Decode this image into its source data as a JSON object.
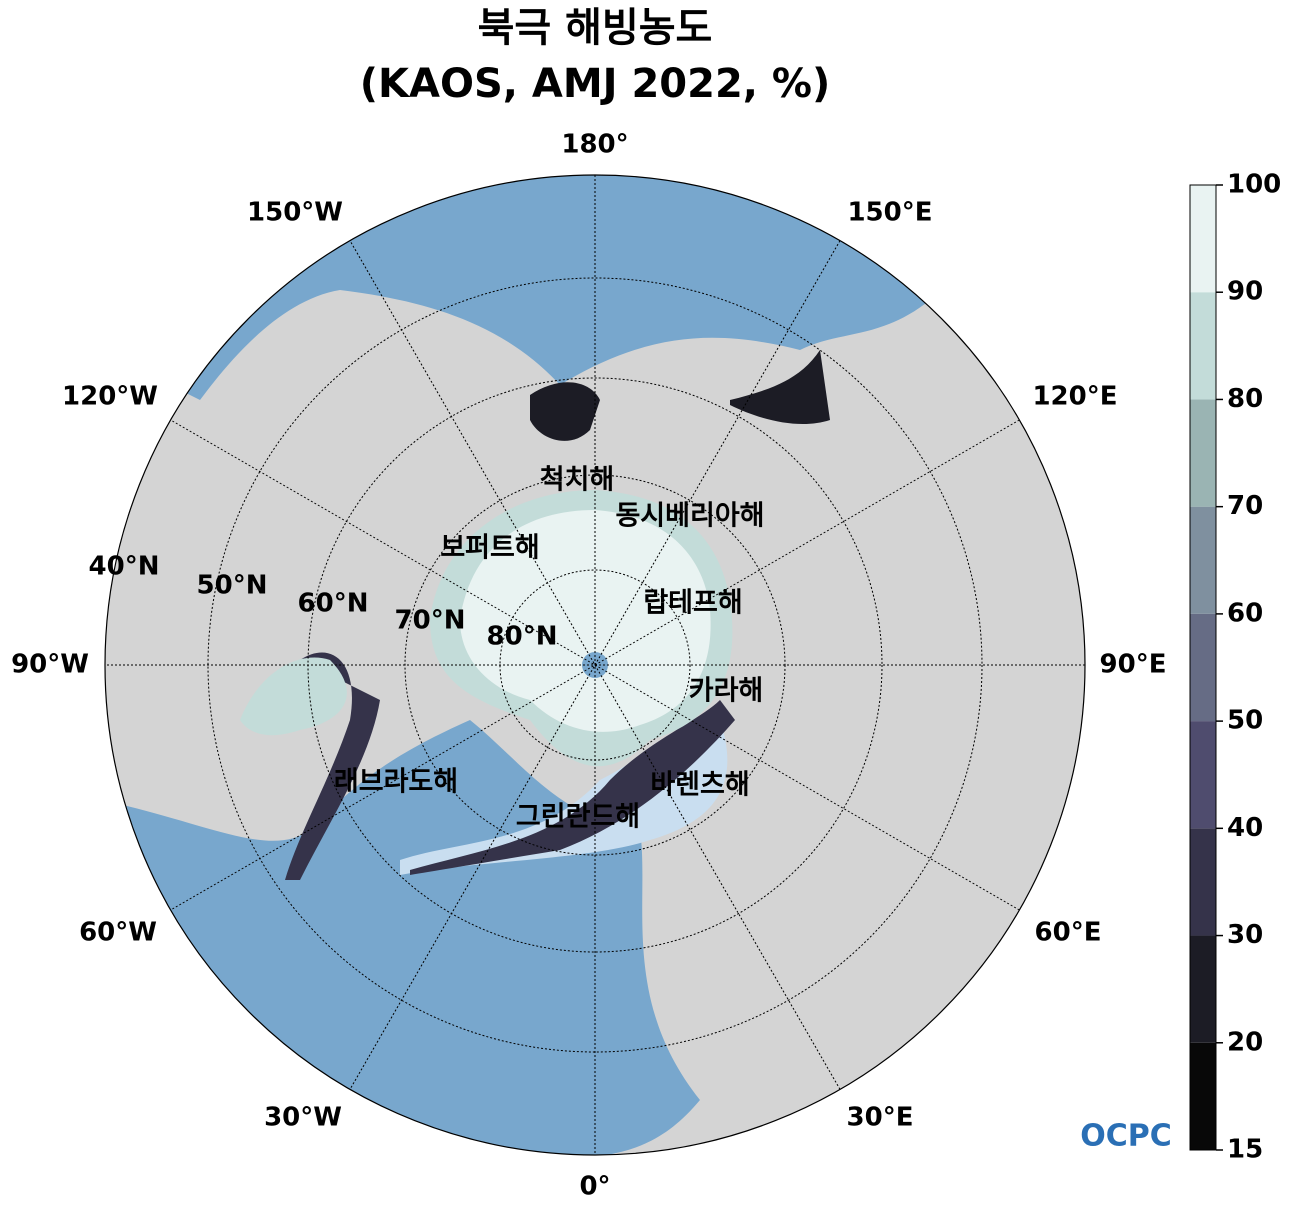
{
  "title": [
    "북극 해빙농도",
    "(KAOS, AMJ 2022, %)"
  ],
  "map": {
    "longitude_labels": [
      "180°",
      "150°E",
      "120°E",
      "90°E",
      "60°E",
      "30°E",
      "0°",
      "30°W",
      "60°W",
      "90°W",
      "120°W",
      "150°W"
    ],
    "latitude_labels": [
      "80°N",
      "70°N",
      "60°N",
      "50°N",
      "40°N"
    ],
    "sea_labels": [
      "척치해",
      "동시베리아해",
      "보퍼트해",
      "랍테프해",
      "카라해",
      "바렌츠해",
      "래브라도해",
      "그린란드해"
    ]
  },
  "colorbar": {
    "ticks": [
      15,
      20,
      30,
      40,
      50,
      60,
      70,
      80,
      90,
      100
    ],
    "colors": [
      "#080808",
      "#1c1c25",
      "#35334a",
      "#4f4c6e",
      "#666c85",
      "#7f909f",
      "#9ab4b3",
      "#c3dcd9",
      "#e9f3f2"
    ]
  },
  "logo": "OCPC"
}
